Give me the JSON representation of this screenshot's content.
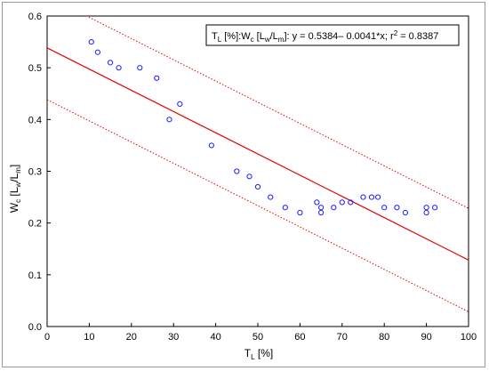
{
  "chart_data": {
    "type": "scatter",
    "xlabel": {
      "main": "T",
      "sub": "L",
      "rest": " [%]"
    },
    "ylabel": {
      "main": "W",
      "sub1": "c",
      "mid": " [L",
      "sub2": "w",
      "slash": "/L",
      "sub3": "m",
      "end": "]"
    },
    "xlim": [
      0,
      100
    ],
    "ylim": [
      0.0,
      0.6
    ],
    "xticks": [
      0,
      10,
      20,
      30,
      40,
      50,
      60,
      70,
      80,
      90,
      100
    ],
    "xtick_labels": [
      "0",
      "10",
      "20",
      "30",
      "40",
      "50",
      "60",
      "70",
      "80",
      "90",
      "100"
    ],
    "yticks": [
      0.0,
      0.1,
      0.2,
      0.3,
      0.4,
      0.5,
      0.6
    ],
    "ytick_labels": [
      "0.0",
      "0.1",
      "0.2",
      "0.3",
      "0.4",
      "0.5",
      "0.6"
    ],
    "grid": false,
    "legend": {
      "placement": "top-right",
      "parts": {
        "t": "T",
        "l": "L",
        "pct": " [%]:W",
        "c": "c",
        "lw_open": " [L",
        "w": "w",
        "lm_open": "/L",
        "m": "m",
        "eq": "]:   y = 0.5384– 0.0041*x; r",
        "two": "2",
        "r2": " = 0.8387"
      }
    },
    "points": [
      {
        "x": 10.5,
        "y": 0.55
      },
      {
        "x": 12,
        "y": 0.53
      },
      {
        "x": 15,
        "y": 0.51
      },
      {
        "x": 17,
        "y": 0.5
      },
      {
        "x": 22,
        "y": 0.5
      },
      {
        "x": 26,
        "y": 0.48
      },
      {
        "x": 29,
        "y": 0.4
      },
      {
        "x": 31.5,
        "y": 0.43
      },
      {
        "x": 39,
        "y": 0.35
      },
      {
        "x": 45,
        "y": 0.3
      },
      {
        "x": 48,
        "y": 0.29
      },
      {
        "x": 50,
        "y": 0.27
      },
      {
        "x": 53,
        "y": 0.25
      },
      {
        "x": 56.5,
        "y": 0.23
      },
      {
        "x": 60,
        "y": 0.22
      },
      {
        "x": 64,
        "y": 0.24
      },
      {
        "x": 65,
        "y": 0.23
      },
      {
        "x": 65,
        "y": 0.22
      },
      {
        "x": 68,
        "y": 0.23
      },
      {
        "x": 70,
        "y": 0.24
      },
      {
        "x": 72,
        "y": 0.24
      },
      {
        "x": 75,
        "y": 0.25
      },
      {
        "x": 77,
        "y": 0.25
      },
      {
        "x": 78.5,
        "y": 0.25
      },
      {
        "x": 80,
        "y": 0.23
      },
      {
        "x": 83,
        "y": 0.23
      },
      {
        "x": 85,
        "y": 0.22
      },
      {
        "x": 90,
        "y": 0.23
      },
      {
        "x": 90,
        "y": 0.22
      },
      {
        "x": 92,
        "y": 0.23
      }
    ],
    "fit": {
      "intercept": 0.5384,
      "slope": -0.0041
    },
    "prediction_band_offset": 0.1,
    "colors": {
      "points": "#1a1aff",
      "fit": "#e60000",
      "band": "#e60000"
    }
  }
}
